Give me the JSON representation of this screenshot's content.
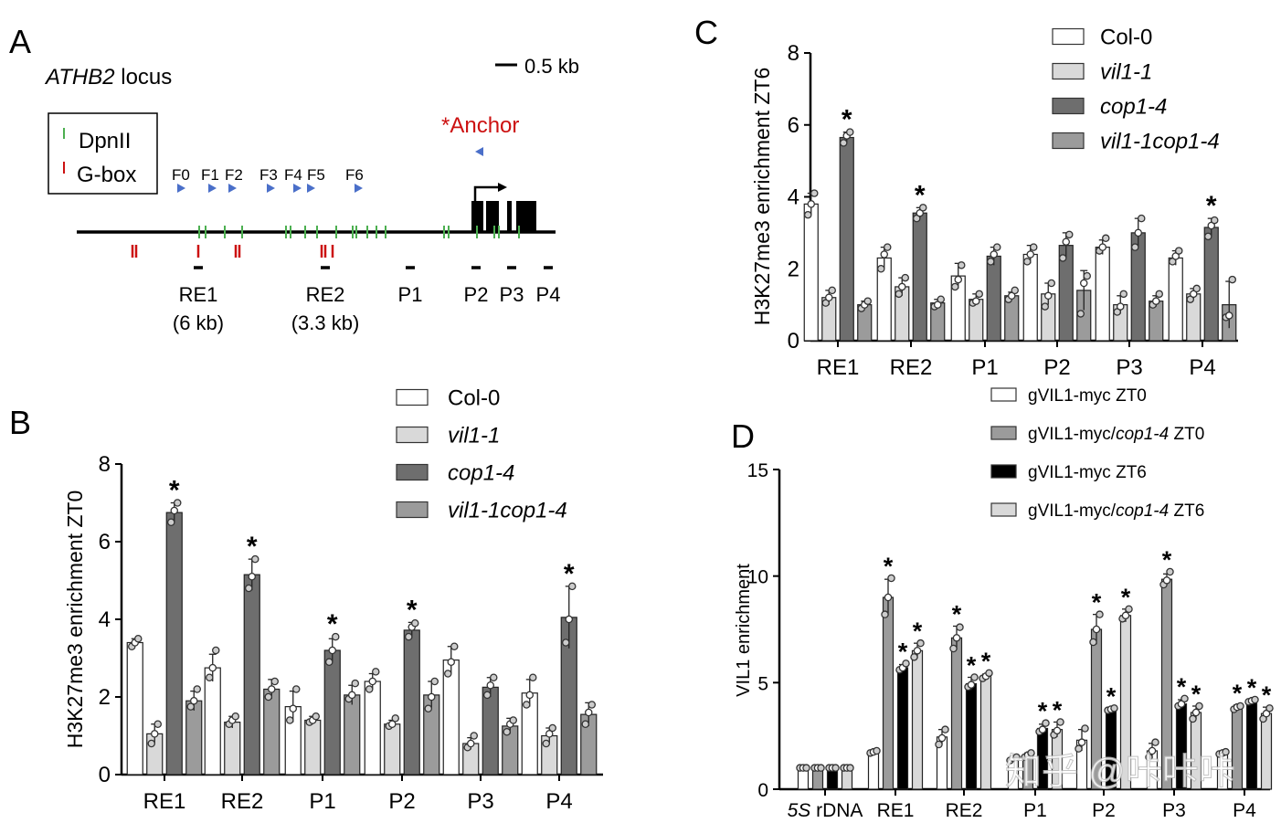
{
  "panels": {
    "A": {
      "letter": "A",
      "title_italic": "ATHB2",
      "title_rest": " locus",
      "scale_bar": "0.5 kb",
      "legend": [
        {
          "label": "DpnII",
          "color": "#4caf50"
        },
        {
          "label": "G-box",
          "color": "#cc1111"
        }
      ],
      "anchor_label": "*Anchor",
      "anchor_color": "#cc1111",
      "primer_color": "#4a6fc9",
      "fragments": [
        "F0",
        "F1",
        "F2",
        "F3",
        "F4",
        "F5",
        "F6"
      ],
      "regions": [
        {
          "label": "RE1",
          "sub": "(6 kb)"
        },
        {
          "label": "RE2",
          "sub": "(3.3 kb)"
        },
        {
          "label": "P1",
          "sub": ""
        },
        {
          "label": "P2",
          "sub": ""
        },
        {
          "label": "P3",
          "sub": ""
        },
        {
          "label": "P4",
          "sub": ""
        }
      ]
    },
    "B": {
      "letter": "B"
    },
    "C": {
      "letter": "C"
    },
    "D": {
      "letter": "D"
    }
  },
  "chart_data": [
    {
      "id": "B",
      "type": "bar",
      "title": "",
      "ylabel": "H3K27me3 enrichment ZT0",
      "xlabel": "",
      "ylim": [
        0,
        8
      ],
      "yticks": [
        "0",
        "2",
        "4",
        "6",
        "8"
      ],
      "categories": [
        "RE1",
        "RE2",
        "P1",
        "P2",
        "P3",
        "P4"
      ],
      "legend_position": "top-right",
      "series": [
        {
          "name": "Col-0",
          "italic": false,
          "color": "#ffffff",
          "values": [
            3.4,
            2.75,
            1.75,
            2.4,
            2.95,
            2.1
          ],
          "err": [
            0.1,
            0.35,
            0.4,
            0.2,
            0.35,
            0.35
          ],
          "points": [
            [
              3.3,
              3.4,
              3.5
            ],
            [
              2.5,
              2.75,
              3.2
            ],
            [
              1.4,
              1.7,
              2.2
            ],
            [
              2.2,
              2.4,
              2.65
            ],
            [
              2.6,
              2.9,
              3.3
            ],
            [
              1.8,
              2.05,
              2.5
            ]
          ]
        },
        {
          "name": "vil1-1",
          "italic": true,
          "color": "#d9d9d9",
          "values": [
            1.05,
            1.35,
            1.4,
            1.3,
            0.8,
            1.0
          ],
          "err": [
            0.25,
            0.15,
            0.1,
            0.1,
            0.15,
            0.2
          ],
          "points": [
            [
              0.8,
              1.05,
              1.3
            ],
            [
              1.3,
              1.4,
              1.5
            ],
            [
              1.35,
              1.4,
              1.5
            ],
            [
              1.25,
              1.3,
              1.45
            ],
            [
              0.7,
              0.8,
              1.0
            ],
            [
              0.8,
              1.05,
              1.2
            ]
          ]
        },
        {
          "name": "cop1-4",
          "italic": true,
          "color": "#6e6e6e",
          "values": [
            6.75,
            5.15,
            3.2,
            3.72,
            2.25,
            4.05
          ],
          "err": [
            0.25,
            0.4,
            0.3,
            0.2,
            0.25,
            0.8
          ],
          "points": [
            [
              6.5,
              6.8,
              7.0
            ],
            [
              4.8,
              5.1,
              5.55
            ],
            [
              2.9,
              3.2,
              3.55
            ],
            [
              3.55,
              3.8,
              3.9
            ],
            [
              2.05,
              2.3,
              2.5
            ],
            [
              3.4,
              4.0,
              4.85
            ]
          ]
        },
        {
          "name": "vil1-1cop1-4",
          "italic": true,
          "color": "#9b9b9b",
          "values": [
            1.9,
            2.2,
            2.05,
            2.05,
            1.25,
            1.55
          ],
          "err": [
            0.25,
            0.25,
            0.25,
            0.35,
            0.2,
            0.3
          ],
          "points": [
            [
              1.75,
              1.9,
              2.2
            ],
            [
              2.0,
              2.2,
              2.4
            ],
            [
              1.95,
              2.05,
              2.35
            ],
            [
              1.7,
              2.0,
              2.4
            ],
            [
              1.1,
              1.3,
              1.4
            ],
            [
              1.3,
              1.6,
              1.8
            ]
          ]
        }
      ],
      "significant": [
        [
          false,
          false,
          true,
          false
        ],
        [
          false,
          false,
          true,
          false
        ],
        [
          false,
          false,
          true,
          false
        ],
        [
          false,
          false,
          true,
          false
        ],
        [
          false,
          false,
          false,
          false
        ],
        [
          false,
          false,
          true,
          false
        ]
      ],
      "sig_marker": "*"
    },
    {
      "id": "C",
      "type": "bar",
      "title": "",
      "ylabel": "H3K27me3 enrichment ZT6",
      "xlabel": "",
      "ylim": [
        0,
        8
      ],
      "yticks": [
        "0",
        "2",
        "4",
        "6",
        "8"
      ],
      "categories": [
        "RE1",
        "RE2",
        "P1",
        "P2",
        "P3",
        "P4"
      ],
      "legend_position": "top-right",
      "series": [
        {
          "name": "Col-0",
          "italic": false,
          "color": "#ffffff",
          "values": [
            3.8,
            2.3,
            1.8,
            2.4,
            2.6,
            2.3
          ],
          "err": [
            0.3,
            0.3,
            0.35,
            0.25,
            0.2,
            0.2
          ],
          "points": [
            [
              3.5,
              3.8,
              4.1
            ],
            [
              2.0,
              2.4,
              2.6
            ],
            [
              1.5,
              1.7,
              2.1
            ],
            [
              2.2,
              2.4,
              2.6
            ],
            [
              2.5,
              2.6,
              2.85
            ],
            [
              2.2,
              2.35,
              2.5
            ]
          ]
        },
        {
          "name": "vil1-1",
          "italic": true,
          "color": "#d9d9d9",
          "values": [
            1.2,
            1.5,
            1.15,
            1.3,
            1.0,
            1.3
          ],
          "err": [
            0.2,
            0.25,
            0.15,
            0.3,
            0.25,
            0.15
          ],
          "points": [
            [
              1.05,
              1.2,
              1.4
            ],
            [
              1.3,
              1.5,
              1.75
            ],
            [
              1.05,
              1.1,
              1.3
            ],
            [
              0.95,
              1.25,
              1.6
            ],
            [
              0.8,
              0.95,
              1.3
            ],
            [
              1.15,
              1.3,
              1.45
            ]
          ]
        },
        {
          "name": "cop1-4",
          "italic": true,
          "color": "#6e6e6e",
          "values": [
            5.65,
            3.55,
            2.35,
            2.65,
            3.0,
            3.15
          ],
          "err": [
            0.15,
            0.15,
            0.25,
            0.35,
            0.4,
            0.25
          ],
          "points": [
            [
              5.5,
              5.7,
              5.8
            ],
            [
              3.4,
              3.55,
              3.7
            ],
            [
              2.2,
              2.4,
              2.6
            ],
            [
              2.3,
              2.75,
              2.95
            ],
            [
              2.6,
              3.0,
              3.4
            ],
            [
              2.9,
              3.2,
              3.35
            ]
          ]
        },
        {
          "name": "vil1-1cop1-4",
          "italic": true,
          "color": "#9b9b9b",
          "values": [
            1.0,
            1.05,
            1.25,
            1.4,
            1.1,
            1.0
          ],
          "err": [
            0.1,
            0.1,
            0.1,
            0.55,
            0.15,
            0.65
          ],
          "points": [
            [
              0.9,
              1.0,
              1.1
            ],
            [
              0.95,
              1.0,
              1.15
            ],
            [
              1.15,
              1.25,
              1.4
            ],
            [
              0.75,
              1.6,
              1.8
            ],
            [
              1.0,
              1.1,
              1.3
            ],
            [
              0.65,
              0.7,
              1.7
            ]
          ]
        }
      ],
      "significant": [
        [
          false,
          false,
          true,
          false
        ],
        [
          false,
          false,
          true,
          false
        ],
        [
          false,
          false,
          false,
          false
        ],
        [
          false,
          false,
          false,
          false
        ],
        [
          false,
          false,
          false,
          false
        ],
        [
          false,
          false,
          true,
          false
        ]
      ],
      "sig_marker": "*"
    },
    {
      "id": "D",
      "type": "bar",
      "title": "",
      "ylabel": "VIL1 enrichment",
      "xlabel": "",
      "ylim": [
        0,
        15
      ],
      "yticks": [
        "0",
        "5",
        "10",
        "15"
      ],
      "categories": [
        "5S rDNA",
        "RE1",
        "RE2",
        "P1",
        "P2",
        "P3",
        "P4"
      ],
      "category_italic_prefix": [
        "5S",
        "",
        "",
        "",
        "",
        "",
        ""
      ],
      "legend_position": "top-right",
      "series": [
        {
          "name": "gVIL1-myc ZT0",
          "italic_part": "",
          "color": "#ffffff",
          "values": [
            1.0,
            1.75,
            2.45,
            1.45,
            2.3,
            1.8,
            1.7
          ],
          "err": [
            0.0,
            0.05,
            0.35,
            0.1,
            0.5,
            0.35,
            0.05
          ],
          "points": [
            [
              1.0,
              1.0,
              1.0
            ],
            [
              1.7,
              1.75,
              1.8
            ],
            [
              2.1,
              2.4,
              2.8
            ],
            [
              1.35,
              1.45,
              1.5
            ],
            [
              1.9,
              2.2,
              2.85
            ],
            [
              1.5,
              1.8,
              2.2
            ],
            [
              1.65,
              1.7,
              1.75
            ]
          ]
        },
        {
          "name": "gVIL1-myc/cop1-4 ZT0",
          "italic_part": "cop1-4",
          "color": "#9b9b9b",
          "values": [
            1.0,
            9.0,
            7.1,
            1.6,
            7.5,
            9.85,
            3.85
          ],
          "err": [
            0.0,
            0.85,
            0.55,
            0.1,
            0.7,
            0.25,
            0.1
          ],
          "points": [
            [
              1.0,
              1.0,
              1.0
            ],
            [
              8.2,
              9.0,
              9.9
            ],
            [
              6.6,
              7.1,
              7.6
            ],
            [
              1.5,
              1.6,
              1.7
            ],
            [
              6.9,
              7.5,
              8.2
            ],
            [
              9.6,
              9.8,
              10.2
            ],
            [
              3.75,
              3.85,
              3.9
            ]
          ]
        },
        {
          "name": "gVIL1-myc ZT6",
          "italic_part": "",
          "color": "#000000",
          "values": [
            1.0,
            5.7,
            4.95,
            2.85,
            3.75,
            4.0,
            4.15
          ],
          "err": [
            0.0,
            0.15,
            0.3,
            0.2,
            0.05,
            0.2,
            0.05
          ],
          "points": [
            [
              1.0,
              1.0,
              1.0
            ],
            [
              5.6,
              5.7,
              5.9
            ],
            [
              4.8,
              4.9,
              5.25
            ],
            [
              2.7,
              2.8,
              3.1
            ],
            [
              3.7,
              3.75,
              3.8
            ],
            [
              3.9,
              4.0,
              4.25
            ],
            [
              4.1,
              4.15,
              4.2
            ]
          ]
        },
        {
          "name": "gVIL1-myc/cop1-4 ZT6",
          "italic_part": "cop1-4",
          "color": "#d9d9d9",
          "values": [
            1.0,
            6.5,
            5.3,
            2.8,
            8.15,
            3.6,
            3.55
          ],
          "err": [
            0.0,
            0.35,
            0.1,
            0.35,
            0.3,
            0.3,
            0.3
          ],
          "points": [
            [
              1.0,
              1.0,
              1.0
            ],
            [
              6.2,
              6.5,
              6.85
            ],
            [
              5.2,
              5.3,
              5.45
            ],
            [
              2.55,
              2.75,
              3.15
            ],
            [
              8.0,
              8.15,
              8.45
            ],
            [
              3.3,
              3.6,
              3.9
            ],
            [
              3.3,
              3.55,
              3.8
            ]
          ]
        }
      ],
      "significant": [
        [
          false,
          false,
          false,
          false
        ],
        [
          false,
          true,
          true,
          true
        ],
        [
          false,
          true,
          true,
          true
        ],
        [
          false,
          false,
          true,
          true
        ],
        [
          false,
          true,
          true,
          true
        ],
        [
          false,
          true,
          true,
          true
        ],
        [
          false,
          true,
          true,
          true
        ]
      ],
      "sig_marker": "*"
    }
  ],
  "watermark": "知乎 @咔咔咔"
}
